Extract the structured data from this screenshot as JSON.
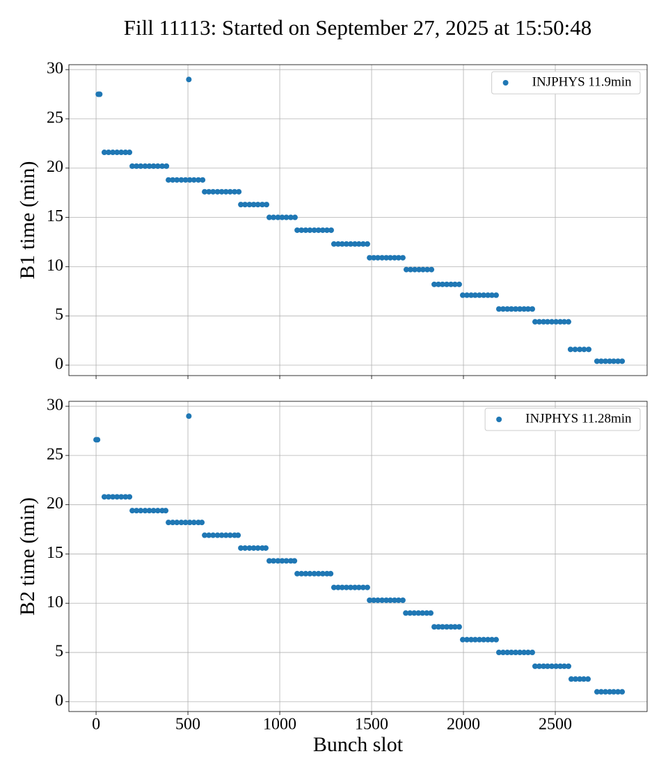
{
  "title": "Fill 11113: Started on September 27, 2025 at 15:50:48",
  "chart_data": [
    {
      "type": "scatter",
      "ylabel": "B1 time (min)",
      "show_xticklabels": false,
      "grid": true,
      "legend": "upper right",
      "xlim": [
        -148,
        3000
      ],
      "xticks": [
        0,
        500,
        1000,
        1500,
        2000,
        2500
      ],
      "ylim": [
        -1.06,
        30.5
      ],
      "yticks": [
        0,
        5,
        10,
        15,
        20,
        25,
        30
      ],
      "series": [
        {
          "name": "INJPHYS 11.9min",
          "color": "#1f77b4",
          "x": [
            12,
            20,
            505,
            45,
            68,
            91,
            114,
            137,
            160,
            182,
            197,
            220,
            243,
            267,
            290,
            313,
            336,
            360,
            383,
            394,
            417,
            440,
            464,
            487,
            510,
            533,
            557,
            580,
            591,
            614,
            637,
            661,
            684,
            707,
            730,
            754,
            777,
            788,
            811,
            835,
            858,
            881,
            905,
            928,
            943,
            966,
            990,
            1013,
            1036,
            1060,
            1083,
            1095,
            1118,
            1141,
            1164,
            1188,
            1211,
            1234,
            1257,
            1280,
            1295,
            1318,
            1340,
            1363,
            1386,
            1409,
            1431,
            1454,
            1477,
            1489,
            1512,
            1534,
            1557,
            1580,
            1602,
            1625,
            1647,
            1670,
            1689,
            1712,
            1735,
            1758,
            1780,
            1803,
            1826,
            1841,
            1864,
            1886,
            1909,
            1932,
            1954,
            1977,
            1996,
            2019,
            2042,
            2064,
            2087,
            2110,
            2133,
            2155,
            2178,
            2193,
            2216,
            2239,
            2261,
            2284,
            2307,
            2330,
            2352,
            2375,
            2390,
            2413,
            2436,
            2458,
            2481,
            2504,
            2527,
            2549,
            2572,
            2583,
            2608,
            2633,
            2657,
            2682,
            2727,
            2750,
            2773,
            2796,
            2818,
            2841,
            2864
          ],
          "values": [
            27.5,
            27.5,
            29,
            21.6,
            21.6,
            21.6,
            21.6,
            21.6,
            21.6,
            21.6,
            20.2,
            20.2,
            20.2,
            20.2,
            20.2,
            20.2,
            20.2,
            20.2,
            20.2,
            18.8,
            18.8,
            18.8,
            18.8,
            18.8,
            18.8,
            18.8,
            18.8,
            18.8,
            17.6,
            17.6,
            17.6,
            17.6,
            17.6,
            17.6,
            17.6,
            17.6,
            17.6,
            16.3,
            16.3,
            16.3,
            16.3,
            16.3,
            16.3,
            16.3,
            15,
            15,
            15,
            15,
            15,
            15,
            15,
            13.7,
            13.7,
            13.7,
            13.7,
            13.7,
            13.7,
            13.7,
            13.7,
            13.7,
            12.3,
            12.3,
            12.3,
            12.3,
            12.3,
            12.3,
            12.3,
            12.3,
            12.3,
            10.9,
            10.9,
            10.9,
            10.9,
            10.9,
            10.9,
            10.9,
            10.9,
            10.9,
            9.7,
            9.7,
            9.7,
            9.7,
            9.7,
            9.7,
            9.7,
            8.2,
            8.2,
            8.2,
            8.2,
            8.2,
            8.2,
            8.2,
            7.1,
            7.1,
            7.1,
            7.1,
            7.1,
            7.1,
            7.1,
            7.1,
            7.1,
            5.7,
            5.7,
            5.7,
            5.7,
            5.7,
            5.7,
            5.7,
            5.7,
            5.7,
            4.4,
            4.4,
            4.4,
            4.4,
            4.4,
            4.4,
            4.4,
            4.4,
            4.4,
            1.6,
            1.6,
            1.6,
            1.6,
            1.6,
            0.4,
            0.4,
            0.4,
            0.4,
            0.4,
            0.4,
            0.4
          ]
        }
      ]
    },
    {
      "type": "scatter",
      "ylabel": "B2 time (min)",
      "xlabel": "Bunch slot",
      "show_xticklabels": true,
      "grid": true,
      "legend": "upper right",
      "xlim": [
        -148,
        3000
      ],
      "xticks": [
        0,
        500,
        1000,
        1500,
        2000,
        2500
      ],
      "ylim": [
        -1.0,
        30.5
      ],
      "yticks": [
        0,
        5,
        10,
        15,
        20,
        25,
        30
      ],
      "series": [
        {
          "name": "INJPHYS 11.28min",
          "color": "#1f77b4",
          "x": [
            0,
            8,
            505,
            45,
            68,
            91,
            114,
            137,
            160,
            182,
            197,
            220,
            243,
            267,
            290,
            313,
            336,
            360,
            379,
            394,
            417,
            440,
            464,
            487,
            510,
            533,
            557,
            576,
            591,
            614,
            637,
            661,
            684,
            707,
            730,
            754,
            773,
            788,
            811,
            835,
            858,
            881,
            905,
            924,
            943,
            966,
            990,
            1013,
            1036,
            1060,
            1080,
            1095,
            1118,
            1141,
            1164,
            1188,
            1211,
            1234,
            1257,
            1277,
            1295,
            1318,
            1340,
            1363,
            1386,
            1409,
            1431,
            1454,
            1477,
            1489,
            1512,
            1534,
            1557,
            1580,
            1602,
            1625,
            1647,
            1670,
            1686,
            1709,
            1732,
            1755,
            1777,
            1800,
            1822,
            1841,
            1864,
            1886,
            1909,
            1932,
            1954,
            1977,
            1996,
            2019,
            2042,
            2064,
            2087,
            2110,
            2133,
            2155,
            2178,
            2193,
            2216,
            2239,
            2261,
            2284,
            2307,
            2330,
            2352,
            2375,
            2390,
            2413,
            2436,
            2458,
            2481,
            2504,
            2527,
            2549,
            2572,
            2587,
            2610,
            2633,
            2655,
            2678,
            2727,
            2750,
            2773,
            2796,
            2818,
            2841,
            2864
          ],
          "values": [
            26.6,
            26.6,
            29,
            20.8,
            20.8,
            20.8,
            20.8,
            20.8,
            20.8,
            20.8,
            19.4,
            19.4,
            19.4,
            19.4,
            19.4,
            19.4,
            19.4,
            19.4,
            19.4,
            18.2,
            18.2,
            18.2,
            18.2,
            18.2,
            18.2,
            18.2,
            18.2,
            18.2,
            16.9,
            16.9,
            16.9,
            16.9,
            16.9,
            16.9,
            16.9,
            16.9,
            16.9,
            15.6,
            15.6,
            15.6,
            15.6,
            15.6,
            15.6,
            15.6,
            14.3,
            14.3,
            14.3,
            14.3,
            14.3,
            14.3,
            14.3,
            13,
            13,
            13,
            13,
            13,
            13,
            13,
            13,
            13,
            11.6,
            11.6,
            11.6,
            11.6,
            11.6,
            11.6,
            11.6,
            11.6,
            11.6,
            10.3,
            10.3,
            10.3,
            10.3,
            10.3,
            10.3,
            10.3,
            10.3,
            10.3,
            9,
            9,
            9,
            9,
            9,
            9,
            9,
            7.6,
            7.6,
            7.6,
            7.6,
            7.6,
            7.6,
            7.6,
            6.3,
            6.3,
            6.3,
            6.3,
            6.3,
            6.3,
            6.3,
            6.3,
            6.3,
            5,
            5,
            5,
            5,
            5,
            5,
            5,
            5,
            5,
            3.6,
            3.6,
            3.6,
            3.6,
            3.6,
            3.6,
            3.6,
            3.6,
            3.6,
            2.3,
            2.3,
            2.3,
            2.3,
            2.3,
            1,
            1,
            1,
            1,
            1,
            1,
            1
          ]
        }
      ]
    }
  ]
}
